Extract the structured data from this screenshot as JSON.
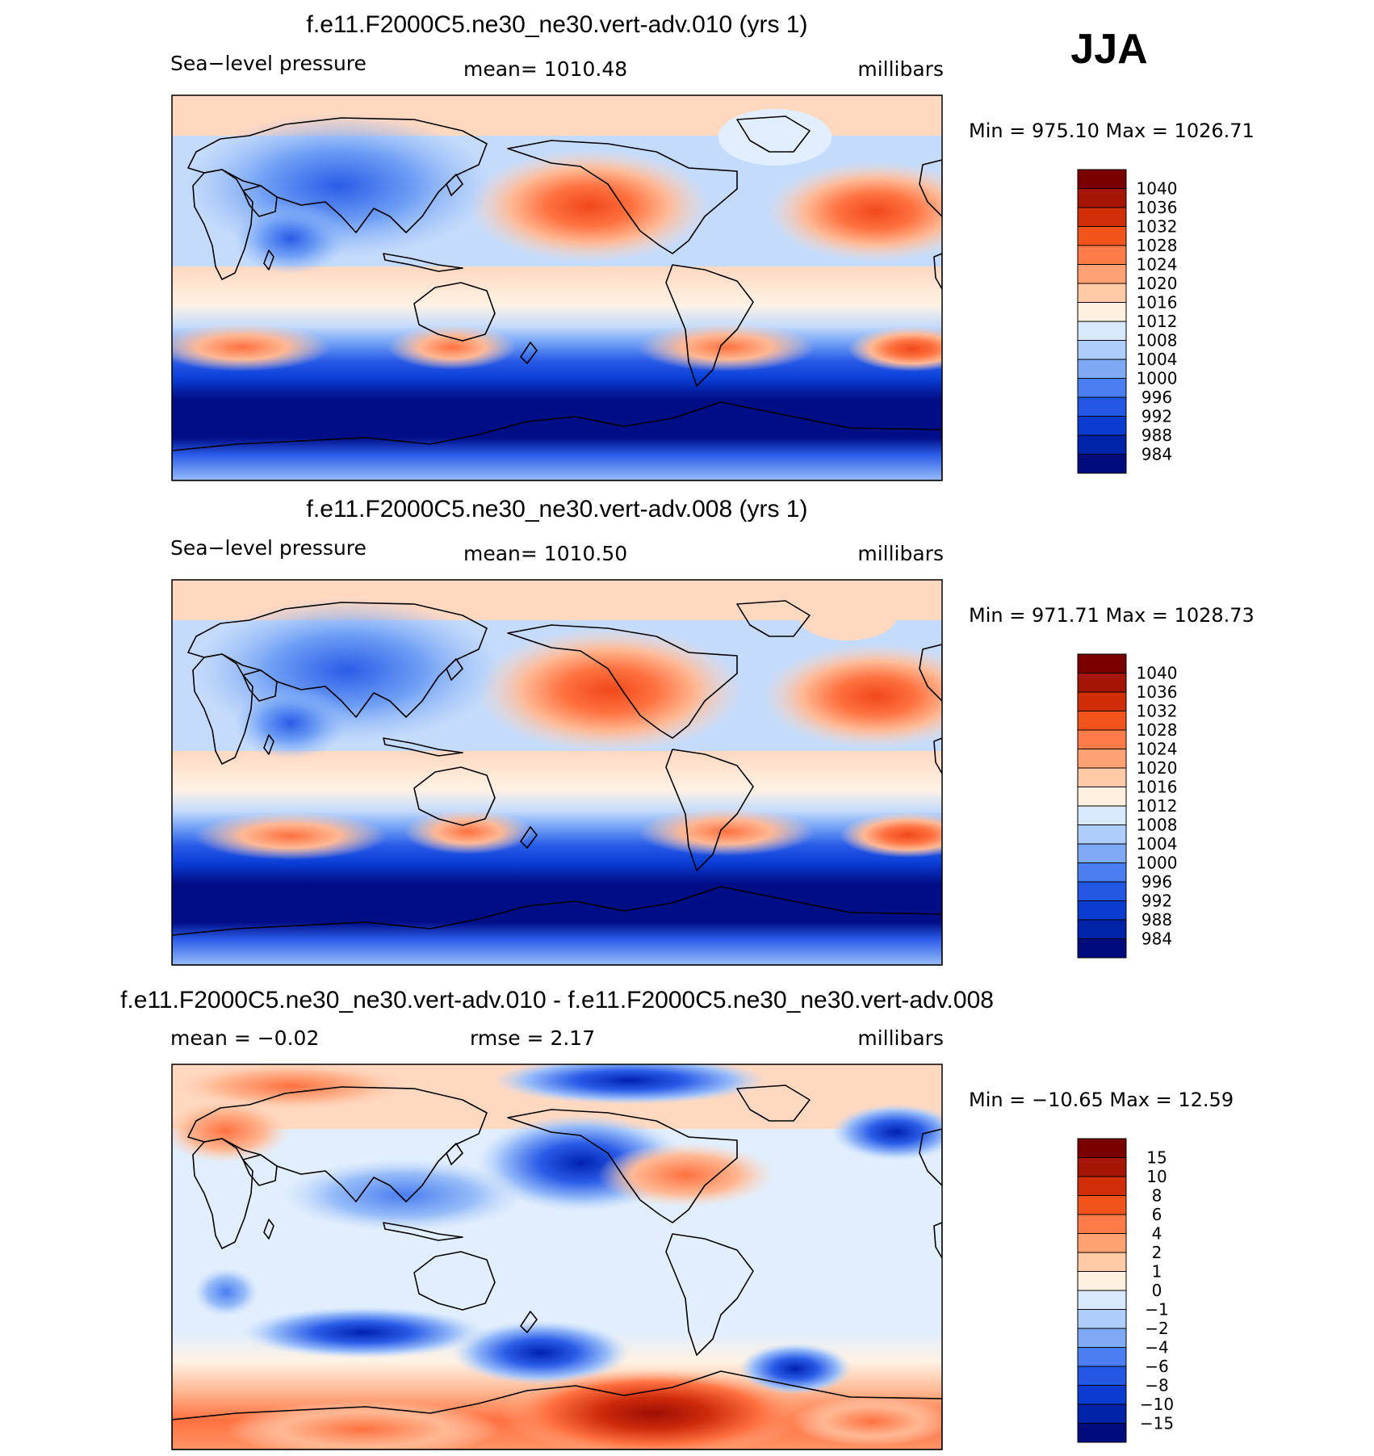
{
  "season": "JJA",
  "palette": {
    "main": [
      "#000e86",
      "#0021b0",
      "#0b3fd8",
      "#2a5ce8",
      "#4a7ef0",
      "#6f9ff5",
      "#98bdf9",
      "#c4dbfb",
      "#e1eefd",
      "#fff2e4",
      "#ffd8c0",
      "#ffb893",
      "#ff9466",
      "#ff7140",
      "#f0481a",
      "#cd2a0a",
      "#9e0e05",
      "#7a0000"
    ],
    "coast": "#000000"
  },
  "panels": [
    {
      "title": "f.e11.F2000C5.ne30_ne30.vert-adv.010 (yrs 1)",
      "left_label": "Sea−level pressure",
      "center_label": "mean=  1010.48",
      "right_label": "millibars",
      "minmax": "Min  =  975.10  Max  =  1026.71",
      "colorbar_labels": [
        "1040",
        "1036",
        "1032",
        "1028",
        "1024",
        "1020",
        "1016",
        "1012",
        "1008",
        "1004",
        "1000",
        "996",
        "992",
        "988",
        "984"
      ],
      "colorbar_fills": [
        "#7a0000",
        "#a51505",
        "#d12d08",
        "#f2541c",
        "#ff7c48",
        "#ffa273",
        "#ffc9a6",
        "#fff0e0",
        "#d8e8fd",
        "#aecdfa",
        "#7ea9f5",
        "#4a7ef0",
        "#2257e3",
        "#0b3bcf",
        "#0024a8",
        "#000c7e"
      ],
      "colorbar_divider_color": "#000000"
    },
    {
      "title": "f.e11.F2000C5.ne30_ne30.vert-adv.008 (yrs 1)",
      "left_label": "Sea−level pressure",
      "center_label": "mean=  1010.50",
      "right_label": "millibars",
      "minmax": "Min  =  971.71  Max  =  1028.73",
      "colorbar_labels": [
        "1040",
        "1036",
        "1032",
        "1028",
        "1024",
        "1020",
        "1016",
        "1012",
        "1008",
        "1004",
        "1000",
        "996",
        "992",
        "988",
        "984"
      ],
      "colorbar_fills": [
        "#7a0000",
        "#a51505",
        "#d12d08",
        "#f2541c",
        "#ff7c48",
        "#ffa273",
        "#ffc9a6",
        "#fff0e0",
        "#d8e8fd",
        "#aecdfa",
        "#7ea9f5",
        "#4a7ef0",
        "#2257e3",
        "#0b3bcf",
        "#0024a8",
        "#000c7e"
      ],
      "colorbar_divider_color": "#000000"
    },
    {
      "title": "f.e11.F2000C5.ne30_ne30.vert-adv.010 - f.e11.F2000C5.ne30_ne30.vert-adv.008",
      "left_label": "mean  =   −0.02",
      "center_label": "rmse  =      2.17",
      "right_label": "millibars",
      "minmax": "Min  =  −10.65  Max  =    12.59",
      "colorbar_labels": [
        "15",
        "10",
        "8",
        "6",
        "4",
        "2",
        "1",
        "0",
        "−1",
        "−2",
        "−4",
        "−6",
        "−8",
        "−10",
        "−15"
      ],
      "colorbar_fills": [
        "#7a0000",
        "#a51505",
        "#d12d08",
        "#f2541c",
        "#ff7c48",
        "#ffa273",
        "#ffc9a6",
        "#fff0e0",
        "#d8e8fd",
        "#aecdfa",
        "#7ea9f5",
        "#4a7ef0",
        "#2257e3",
        "#0b3bcf",
        "#0024a8",
        "#000c7e"
      ],
      "colorbar_divider_color": "#000000"
    }
  ]
}
